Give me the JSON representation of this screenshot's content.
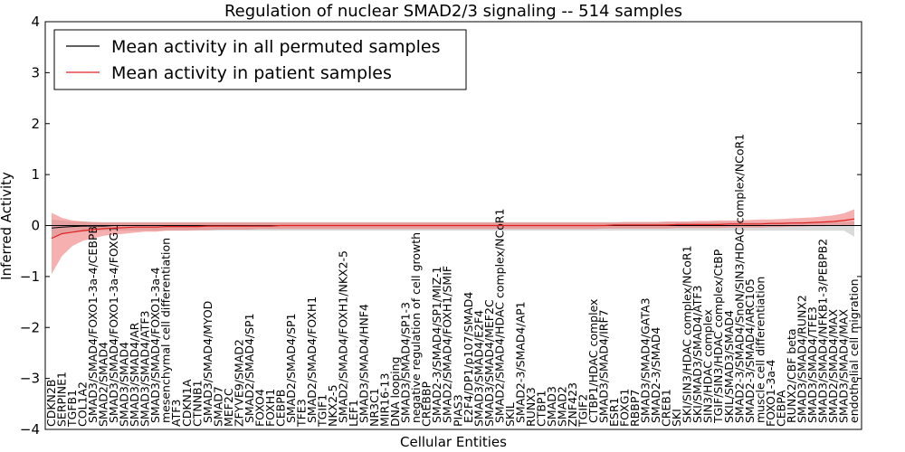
{
  "chart_data": {
    "type": "line",
    "title": "Regulation of nuclear SMAD2/3 signaling -- 514 samples",
    "xlabel": "Cellular Entities",
    "ylabel": "Inferred Activity",
    "ylim": [
      -4,
      4
    ],
    "yticks": [
      -4,
      -3,
      -2,
      -1,
      0,
      1,
      2,
      3,
      4
    ],
    "grid": false,
    "legend_position": "top-left",
    "n_points": 78,
    "colors": {
      "permuted_line": "#000000",
      "permuted_band": "#bbbbbb",
      "patient_line": "#e02020",
      "patient_band": "#f07070",
      "zero_line": "#000000"
    },
    "series": [
      {
        "name": "Mean activity in all permuted samples",
        "color": "#000000",
        "values": [
          -0.05,
          -0.03,
          -0.02,
          -0.01,
          -0.01,
          -0.01,
          0,
          0,
          0,
          0,
          0,
          0,
          0,
          0,
          0,
          0,
          0,
          0,
          0,
          0,
          0,
          0,
          0,
          0,
          0,
          0,
          0,
          0,
          0,
          0,
          0,
          0,
          0,
          0,
          0,
          0,
          0,
          0,
          0,
          0,
          0,
          0,
          0,
          0,
          0,
          0,
          0,
          0,
          0,
          0,
          0,
          0,
          0,
          0,
          0,
          0,
          0,
          0,
          0,
          0,
          0,
          0,
          0,
          0,
          0,
          0,
          0,
          0,
          0,
          0,
          0,
          0,
          0,
          0,
          0,
          0,
          0,
          0
        ],
        "band_upper": [
          0.12,
          0.1,
          0.08,
          0.08,
          0.07,
          0.07,
          0.07,
          0.07,
          0.07,
          0.07,
          0.07,
          0.07,
          0.07,
          0.07,
          0.07,
          0.07,
          0.07,
          0.07,
          0.07,
          0.07,
          0.07,
          0.07,
          0.07,
          0.07,
          0.07,
          0.07,
          0.07,
          0.07,
          0.07,
          0.07,
          0.07,
          0.07,
          0.07,
          0.07,
          0.07,
          0.07,
          0.07,
          0.07,
          0.07,
          0.07,
          0.07,
          0.07,
          0.07,
          0.07,
          0.07,
          0.07,
          0.07,
          0.07,
          0.07,
          0.07,
          0.07,
          0.07,
          0.07,
          0.07,
          0.07,
          0.07,
          0.07,
          0.07,
          0.07,
          0.07,
          0.07,
          0.07,
          0.07,
          0.07,
          0.07,
          0.07,
          0.07,
          0.07,
          0.07,
          0.07,
          0.07,
          0.07,
          0.07,
          0.07,
          0.07,
          0.07,
          0.07,
          0.08
        ],
        "band_lower": [
          -0.22,
          -0.16,
          -0.14,
          -0.12,
          -0.11,
          -0.1,
          -0.1,
          -0.1,
          -0.1,
          -0.1,
          -0.1,
          -0.1,
          -0.1,
          -0.1,
          -0.1,
          -0.1,
          -0.1,
          -0.1,
          -0.1,
          -0.1,
          -0.1,
          -0.1,
          -0.1,
          -0.1,
          -0.1,
          -0.1,
          -0.1,
          -0.1,
          -0.1,
          -0.1,
          -0.1,
          -0.1,
          -0.1,
          -0.1,
          -0.1,
          -0.1,
          -0.1,
          -0.1,
          -0.1,
          -0.1,
          -0.1,
          -0.1,
          -0.1,
          -0.1,
          -0.1,
          -0.1,
          -0.1,
          -0.1,
          -0.1,
          -0.1,
          -0.1,
          -0.1,
          -0.1,
          -0.1,
          -0.1,
          -0.1,
          -0.1,
          -0.1,
          -0.1,
          -0.1,
          -0.1,
          -0.1,
          -0.1,
          -0.1,
          -0.1,
          -0.1,
          -0.1,
          -0.1,
          -0.1,
          -0.1,
          -0.1,
          -0.1,
          -0.1,
          -0.1,
          -0.1,
          -0.1,
          -0.1,
          -0.22
        ]
      },
      {
        "name": "Mean activity in patient samples",
        "color": "#e02020",
        "values": [
          -0.25,
          -0.16,
          -0.13,
          -0.1,
          -0.08,
          -0.06,
          -0.05,
          -0.04,
          -0.03,
          -0.03,
          -0.03,
          -0.02,
          -0.02,
          -0.02,
          -0.02,
          -0.01,
          -0.01,
          -0.01,
          -0.01,
          -0.01,
          -0.01,
          -0.01,
          0,
          0,
          0,
          0,
          0,
          0,
          0,
          0,
          0,
          0,
          0,
          0,
          0,
          0,
          0,
          0,
          0,
          0,
          0,
          0,
          0,
          0,
          0,
          0,
          0,
          0,
          0,
          0,
          0,
          0,
          0,
          0,
          0.01,
          0.01,
          0.01,
          0.01,
          0.01,
          0.01,
          0.02,
          0.02,
          0.02,
          0.02,
          0.02,
          0.03,
          0.03,
          0.03,
          0.03,
          0.04,
          0.04,
          0.05,
          0.05,
          0.06,
          0.07,
          0.08,
          0.1,
          0.13
        ],
        "band_upper": [
          0.25,
          0.15,
          0.1,
          0.08,
          0.07,
          0.06,
          0.06,
          0.06,
          0.06,
          0.06,
          0.06,
          0.06,
          0.06,
          0.06,
          0.06,
          0.06,
          0.06,
          0.06,
          0.06,
          0.06,
          0.06,
          0.06,
          0.06,
          0.06,
          0.06,
          0.06,
          0.06,
          0.06,
          0.06,
          0.06,
          0.06,
          0.06,
          0.06,
          0.06,
          0.06,
          0.06,
          0.06,
          0.06,
          0.06,
          0.06,
          0.06,
          0.06,
          0.06,
          0.06,
          0.06,
          0.06,
          0.06,
          0.06,
          0.06,
          0.06,
          0.06,
          0.06,
          0.06,
          0.06,
          0.06,
          0.07,
          0.07,
          0.07,
          0.07,
          0.08,
          0.08,
          0.08,
          0.09,
          0.09,
          0.1,
          0.1,
          0.1,
          0.11,
          0.12,
          0.12,
          0.13,
          0.14,
          0.15,
          0.16,
          0.18,
          0.2,
          0.24,
          0.32
        ],
        "band_lower": [
          -0.95,
          -0.6,
          -0.4,
          -0.3,
          -0.25,
          -0.2,
          -0.18,
          -0.16,
          -0.14,
          -0.12,
          -0.12,
          -0.1,
          -0.1,
          -0.1,
          -0.09,
          -0.09,
          -0.08,
          -0.08,
          -0.08,
          -0.08,
          -0.07,
          -0.07,
          -0.07,
          -0.07,
          -0.07,
          -0.07,
          -0.07,
          -0.07,
          -0.07,
          -0.07,
          -0.07,
          -0.07,
          -0.07,
          -0.07,
          -0.07,
          -0.07,
          -0.07,
          -0.07,
          -0.07,
          -0.07,
          -0.07,
          -0.07,
          -0.07,
          -0.07,
          -0.07,
          -0.07,
          -0.07,
          -0.07,
          -0.07,
          -0.07,
          -0.07,
          -0.07,
          -0.07,
          -0.06,
          -0.06,
          -0.06,
          -0.06,
          -0.06,
          -0.06,
          -0.06,
          -0.05,
          -0.05,
          -0.05,
          -0.05,
          -0.05,
          -0.04,
          -0.04,
          -0.04,
          -0.04,
          -0.03,
          -0.03,
          -0.02,
          -0.02,
          -0.01,
          -0.01,
          0,
          0,
          0
        ]
      }
    ],
    "categories": [
      {
        "i": 0,
        "label": "CDKN2B",
        "low": true
      },
      {
        "i": 1,
        "label": "SERPINE1",
        "low": true
      },
      {
        "i": 2,
        "label": "TGFB1",
        "low": true
      },
      {
        "i": 3,
        "label": "COL1A2",
        "low": true
      },
      {
        "i": 4,
        "label": "SMAD3/SMAD4/FOXO1-3a-4/CEBPB",
        "low": false
      },
      {
        "i": 5,
        "label": "SMAD2/SMAD4",
        "low": true
      },
      {
        "i": 6,
        "label": "SMAD3/SMAD4/FOXO1-3a-4/FOXG1",
        "low": false
      },
      {
        "i": 7,
        "label": "SMAD3/SMAD4",
        "low": true
      },
      {
        "i": 8,
        "label": "SMAD3/SMAD4/AR",
        "low": true
      },
      {
        "i": 9,
        "label": "SMAD3/SMAD4/ATF3",
        "low": true
      },
      {
        "i": 10,
        "label": "SMAD3/SMAD4/FOXO1-3a-4",
        "low": false
      },
      {
        "i": 11,
        "label": "mesenchymal cell differentiation",
        "low": false
      },
      {
        "i": 12,
        "label": "ATF3",
        "low": true
      },
      {
        "i": 13,
        "label": "CDKN1A",
        "low": true
      },
      {
        "i": 14,
        "label": "CTNNB1",
        "low": true
      },
      {
        "i": 15,
        "label": "SMAD3/SMAD4/MYOD",
        "low": false
      },
      {
        "i": 16,
        "label": "SMAD7",
        "low": true
      },
      {
        "i": 17,
        "label": "MEF2C",
        "low": true
      },
      {
        "i": 18,
        "label": "ZFYVE9/SMAD2",
        "low": true
      },
      {
        "i": 19,
        "label": "SMAD2/SMAD4/SP1",
        "low": false
      },
      {
        "i": 20,
        "label": "FOXO4",
        "low": true
      },
      {
        "i": 21,
        "label": "FOXH1",
        "low": true
      },
      {
        "i": 22,
        "label": "CEBPB",
        "low": true
      },
      {
        "i": 23,
        "label": "SMAD2/SMAD4/SP1",
        "low": false
      },
      {
        "i": 24,
        "label": "TFE3",
        "low": true
      },
      {
        "i": 25,
        "label": "SMAD2/SMAD4/FOXH1",
        "low": false
      },
      {
        "i": 26,
        "label": "TGIF1",
        "low": true
      },
      {
        "i": 27,
        "label": "NKX2-5",
        "low": true
      },
      {
        "i": 28,
        "label": "SMAD2/SMAD4/FOXH1/NKX2-5",
        "low": false
      },
      {
        "i": 29,
        "label": "LEF1",
        "low": true
      },
      {
        "i": 30,
        "label": "SMAD3/SMAD4/HNF4",
        "low": false
      },
      {
        "i": 31,
        "label": "NR3C1",
        "low": true
      },
      {
        "i": 32,
        "label": "MIR16-13",
        "low": true
      },
      {
        "i": 33,
        "label": "DNA looping",
        "low": true
      },
      {
        "i": 34,
        "label": "SMAD3/SMAD4/SP1-3",
        "low": false
      },
      {
        "i": 35,
        "label": "negative regulation of cell growth",
        "low": false
      },
      {
        "i": 36,
        "label": "CREBBP",
        "low": true
      },
      {
        "i": 37,
        "label": "SMAD2-3/SMAD4/SP1/MIZ-1",
        "low": false
      },
      {
        "i": 38,
        "label": "SMAD2/SMAD4/FOXH1/SMIF",
        "low": false
      },
      {
        "i": 39,
        "label": "PIAS3",
        "low": true
      },
      {
        "i": 40,
        "label": "E2F4/DP1/p107/SMAD4",
        "low": false
      },
      {
        "i": 41,
        "label": "SMAD3/SMAD4/E2F4",
        "low": true
      },
      {
        "i": 42,
        "label": "SMAD3/SMAD4/MEF2C",
        "low": true
      },
      {
        "i": 43,
        "label": "SMAD2/SMAD4/HDAC complex/NCoR1",
        "low": false
      },
      {
        "i": 44,
        "label": "SKIL",
        "low": true
      },
      {
        "i": 45,
        "label": "SMAD2-3/SMAD4/AP1",
        "low": false
      },
      {
        "i": 46,
        "label": "RUNX3",
        "low": true
      },
      {
        "i": 47,
        "label": "CTBP1",
        "low": true
      },
      {
        "i": 48,
        "label": "SMAD3",
        "low": true
      },
      {
        "i": 49,
        "label": "SMAD2",
        "low": true
      },
      {
        "i": 50,
        "label": "ZNF423",
        "low": true
      },
      {
        "i": 51,
        "label": "TGIF2",
        "low": true
      },
      {
        "i": 52,
        "label": "CTBP1/HDAC complex",
        "low": false
      },
      {
        "i": 53,
        "label": "SMAD3/SMAD4/IRF7",
        "low": false
      },
      {
        "i": 54,
        "label": "ESR1",
        "low": true
      },
      {
        "i": 55,
        "label": "FOXG1",
        "low": true
      },
      {
        "i": 56,
        "label": "RBBP7",
        "low": true
      },
      {
        "i": 57,
        "label": "SMAD3/SMAD4/GATA3",
        "low": false
      },
      {
        "i": 58,
        "label": "SMAD2-3/SMAD4",
        "low": false
      },
      {
        "i": 59,
        "label": "CREB1",
        "low": true
      },
      {
        "i": 60,
        "label": "SKI",
        "low": true
      },
      {
        "i": 61,
        "label": "SKI/SIN3/HDAC complex/NCoR1",
        "low": false
      },
      {
        "i": 62,
        "label": "SKI/SMAD3/SMAD4/ATF3",
        "low": false
      },
      {
        "i": 63,
        "label": "SIN3/HDAC complex",
        "low": false
      },
      {
        "i": 64,
        "label": "TGIF/SIN3/HDAC complex/CtBP",
        "low": false
      },
      {
        "i": 65,
        "label": "SKIL/SMAD3/SMAD4",
        "low": false
      },
      {
        "i": 66,
        "label": "SMAD2-3/SMAD4/SnoN/SIN3/HDAC complex/NCoR1",
        "low": false
      },
      {
        "i": 67,
        "label": "SMAD2-3/SMAD4/ARC105",
        "low": false
      },
      {
        "i": 68,
        "label": "muscle cell differentiation",
        "low": false
      },
      {
        "i": 69,
        "label": "FOXO1-3a-4",
        "low": true
      },
      {
        "i": 70,
        "label": "CEBPA",
        "low": true
      },
      {
        "i": 71,
        "label": "RUNX2/CBF beta",
        "low": false
      },
      {
        "i": 72,
        "label": "SMAD3/SMAD4/RUNX2",
        "low": false
      },
      {
        "i": 73,
        "label": "SMAD3/SMAD4/TFE3",
        "low": false
      },
      {
        "i": 74,
        "label": "SMAD3/SMAD4/NFKB1-3/PEBPB2",
        "low": false
      },
      {
        "i": 75,
        "label": "SMAD2/SMAD4/MAX",
        "low": false
      },
      {
        "i": 76,
        "label": "SMAD3/SMAD4/MAX",
        "low": false
      },
      {
        "i": 77,
        "label": "endothelial cell migration",
        "low": false
      }
    ],
    "legend": [
      {
        "label": "Mean activity in all permuted samples",
        "color": "#000000"
      },
      {
        "label": "Mean activity in patient samples",
        "color": "#e02020"
      }
    ]
  }
}
